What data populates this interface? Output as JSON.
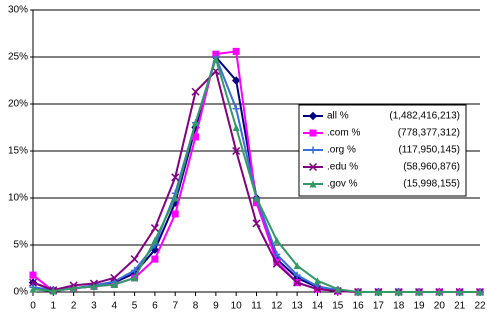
{
  "chart_data": {
    "type": "line",
    "x": [
      0,
      1,
      2,
      3,
      4,
      5,
      6,
      7,
      8,
      9,
      10,
      11,
      12,
      13,
      14,
      15,
      16,
      17,
      18,
      19,
      20,
      21,
      22
    ],
    "xlim": [
      0,
      22
    ],
    "xticks": [
      0,
      1,
      2,
      3,
      4,
      5,
      6,
      7,
      8,
      9,
      10,
      11,
      12,
      13,
      14,
      15,
      16,
      17,
      18,
      19,
      20,
      21,
      22
    ],
    "ylim": [
      0,
      30
    ],
    "yticks": [
      {
        "value": 0,
        "label": "0%"
      },
      {
        "value": 5,
        "label": "5%"
      },
      {
        "value": 10,
        "label": "10%"
      },
      {
        "value": 15,
        "label": "15%"
      },
      {
        "value": 20,
        "label": "20%"
      },
      {
        "value": 25,
        "label": "25%"
      },
      {
        "value": 30,
        "label": "30%"
      }
    ],
    "grid": true,
    "legend_position": "right",
    "series": [
      {
        "name": "all %",
        "count": "(1,482,416,213)",
        "color": "#000080",
        "marker": "diamond",
        "values": [
          1.0,
          0.2,
          0.4,
          0.6,
          1.0,
          2.0,
          4.5,
          9.5,
          17.5,
          25.0,
          22.5,
          10.0,
          3.5,
          1.5,
          0.5,
          0.2,
          0,
          0,
          0,
          0,
          0,
          0,
          0
        ]
      },
      {
        "name": ".com %",
        "count": "(778,377,312)",
        "color": "#ff00ff",
        "marker": "square",
        "values": [
          1.8,
          0.1,
          0.4,
          0.6,
          0.8,
          1.5,
          3.5,
          8.3,
          16.5,
          25.3,
          25.6,
          9.5,
          3.2,
          1.0,
          0.3,
          0.1,
          0,
          0,
          0,
          0,
          0,
          0,
          0
        ]
      },
      {
        "name": ".org %",
        "count": "(117,950,145)",
        "color": "#3a6fd8",
        "marker": "plus",
        "values": [
          0.5,
          0.2,
          0.4,
          0.7,
          1.1,
          2.3,
          5.0,
          10.5,
          18.0,
          25.0,
          19.5,
          10.0,
          4.0,
          1.8,
          0.6,
          0.2,
          0,
          0,
          0,
          0,
          0,
          0,
          0
        ]
      },
      {
        "name": ".edu %",
        "count": "(58,960,876)",
        "color": "#800080",
        "marker": "cross",
        "values": [
          1.0,
          0.2,
          0.7,
          0.9,
          1.5,
          3.5,
          6.8,
          12.2,
          21.3,
          23.5,
          15.0,
          7.3,
          3.0,
          1.0,
          0.3,
          0.1,
          0,
          0,
          0,
          0,
          0,
          0,
          0
        ]
      },
      {
        "name": ".gov %",
        "count": "(15,998,155)",
        "color": "#339966",
        "marker": "triangle",
        "values": [
          0.3,
          0.1,
          0.4,
          0.6,
          0.8,
          1.5,
          5.5,
          10.0,
          18.0,
          24.8,
          17.5,
          10.0,
          5.5,
          2.8,
          1.2,
          0.3,
          0,
          0,
          0,
          0,
          0,
          0,
          0
        ]
      }
    ]
  }
}
